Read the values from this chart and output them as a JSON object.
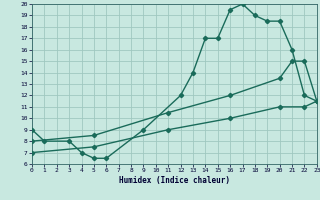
{
  "bg_color": "#c8e8e0",
  "grid_color": "#a0c8c0",
  "line_color": "#1a6b5a",
  "xlabel": "Humidex (Indice chaleur)",
  "ylim": [
    6,
    20
  ],
  "xlim": [
    0,
    23
  ],
  "yticks": [
    6,
    7,
    8,
    9,
    10,
    11,
    12,
    13,
    14,
    15,
    16,
    17,
    18,
    19,
    20
  ],
  "xticks": [
    0,
    1,
    2,
    3,
    4,
    5,
    6,
    7,
    8,
    9,
    10,
    11,
    12,
    13,
    14,
    15,
    16,
    17,
    18,
    19,
    20,
    21,
    22,
    23
  ],
  "curve1_x": [
    0,
    1,
    3,
    4,
    5,
    6,
    9,
    12,
    13,
    14,
    15,
    16,
    17,
    18,
    19,
    20,
    21,
    22,
    23
  ],
  "curve1_y": [
    9,
    8,
    8,
    7,
    6.5,
    6.5,
    9,
    12,
    14,
    17,
    17,
    19.5,
    20,
    19,
    18.5,
    18.5,
    16,
    12,
    11.5
  ],
  "curve2_x": [
    0,
    5,
    11,
    16,
    20,
    21,
    22,
    23
  ],
  "curve2_y": [
    8,
    8.5,
    10.5,
    12,
    13.5,
    15,
    15,
    11.5
  ],
  "curve3_x": [
    0,
    5,
    11,
    16,
    20,
    22,
    23
  ],
  "curve3_y": [
    7,
    7.5,
    9,
    10,
    11,
    11,
    11.5
  ],
  "title": ""
}
